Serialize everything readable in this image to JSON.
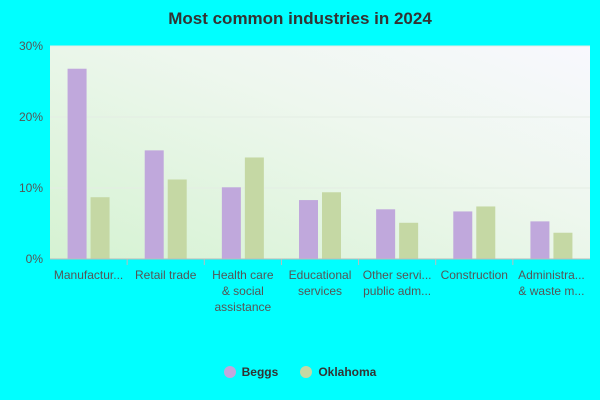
{
  "chart_data": {
    "type": "bar",
    "title": "Most common industries in 2024",
    "categories": [
      [
        "Manufactur..."
      ],
      [
        "Retail trade"
      ],
      [
        "Health care",
        "& social",
        "assistance"
      ],
      [
        "Educational",
        "services"
      ],
      [
        "Other servi...",
        "public adm..."
      ],
      [
        "Construction"
      ],
      [
        "Administra...",
        "& waste m..."
      ]
    ],
    "series": [
      {
        "name": "Beggs",
        "color": "#C0A8DC",
        "values": [
          26.8,
          15.3,
          10.1,
          8.3,
          7.0,
          6.7,
          5.3
        ]
      },
      {
        "name": "Oklahoma",
        "color": "#C5D8A4",
        "values": [
          8.7,
          11.2,
          14.3,
          9.4,
          5.1,
          7.4,
          3.7
        ]
      }
    ],
    "yticks": [
      "0%",
      "10%",
      "20%",
      "30%"
    ],
    "ylim": [
      0,
      30
    ],
    "legend": "bottom-center",
    "grid": true
  }
}
